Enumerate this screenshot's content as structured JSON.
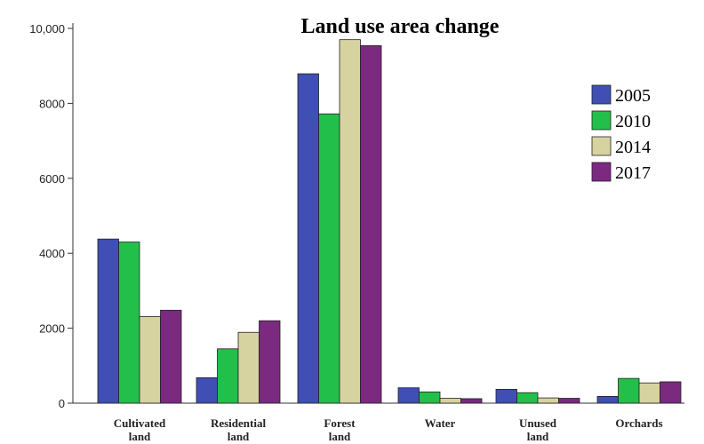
{
  "chart_data": {
    "type": "bar",
    "title": "Land use area change",
    "xlabel": "",
    "ylabel": "",
    "ylim": [
      0,
      10000
    ],
    "yticks": [
      {
        "value": 0,
        "label": "0"
      },
      {
        "value": 2000,
        "label": "2000"
      },
      {
        "value": 4000,
        "label": "4000"
      },
      {
        "value": 6000,
        "label": "6000"
      },
      {
        "value": 8000,
        "label": "8000"
      },
      {
        "value": 10000,
        "label": "10,000"
      }
    ],
    "categories": [
      [
        "Cultivated",
        "land"
      ],
      [
        "Residential",
        "land"
      ],
      [
        "Forest",
        "land"
      ],
      [
        "Water"
      ],
      [
        "Unused",
        "land"
      ],
      [
        "Orchards"
      ]
    ],
    "series": [
      {
        "name": "2005",
        "color": "#3f4fb3",
        "values": [
          4380,
          680,
          8790,
          410,
          370,
          180
        ]
      },
      {
        "name": "2010",
        "color": "#22c04b",
        "values": [
          4300,
          1450,
          7720,
          300,
          280,
          660
        ]
      },
      {
        "name": "2014",
        "color": "#d6d3a0",
        "values": [
          2310,
          1890,
          9700,
          130,
          140,
          540
        ]
      },
      {
        "name": "2017",
        "color": "#7b2a7f",
        "values": [
          2480,
          2200,
          9540,
          120,
          130,
          570
        ]
      }
    ],
    "legend_position": "top-right",
    "grid": false
  }
}
